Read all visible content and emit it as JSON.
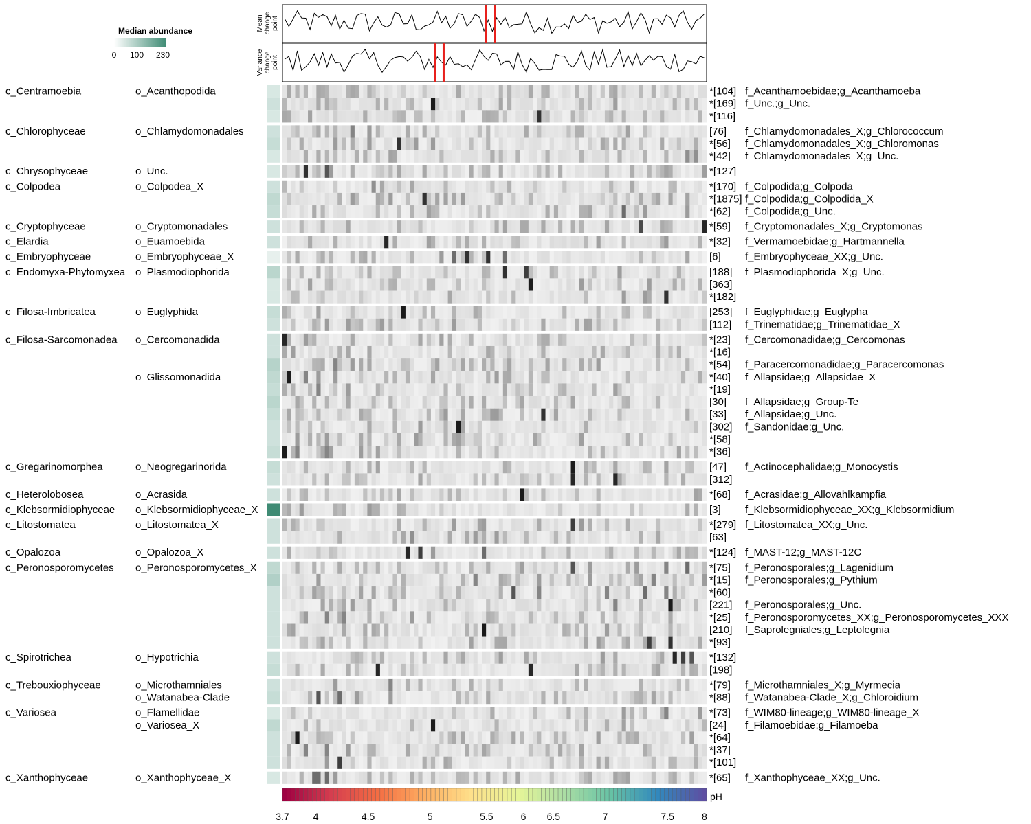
{
  "legend": {
    "title": "Median abundance",
    "ticks": [
      "0",
      "100",
      "230"
    ],
    "colors": {
      "low": "#ffffff",
      "high": "#3f8b74"
    }
  },
  "panels": {
    "mean_label": [
      "Mean",
      "change",
      "point"
    ],
    "variance_label": [
      "Variance",
      "change",
      "point"
    ]
  },
  "ph_bar": {
    "label": "pH",
    "tick_labels": [
      "3.7",
      "4",
      "4.5",
      "5",
      "5.5",
      "6",
      "6.5",
      "7",
      "7.5",
      "8"
    ],
    "tick_values": [
      3.7,
      4,
      4.5,
      5,
      5.5,
      6,
      6.5,
      7,
      7.5,
      8
    ],
    "palette": [
      "#9e0142",
      "#d53e4f",
      "#f46d43",
      "#fdae61",
      "#fee08b",
      "#e6f598",
      "#abdda4",
      "#66c2a5",
      "#3288bd",
      "#5e4fa2"
    ]
  },
  "chart_data": {
    "type": "heatmap",
    "n_samples": 100,
    "mean_change_points": [
      48,
      50
    ],
    "variance_change_points": [
      36,
      38
    ],
    "rows": [
      {
        "cls": "c_Centramoebia",
        "ord": "o_Acanthopodida",
        "otu": "*[104]",
        "fam": "f_Acanthamoebidae;g_Acanthamoeba",
        "grp": 0
      },
      {
        "cls": "",
        "ord": "",
        "otu": "*[169]",
        "fam": "f_Unc.;g_Unc.",
        "grp": 0
      },
      {
        "cls": "",
        "ord": "",
        "otu": "*[116]",
        "fam": "",
        "grp": 0
      },
      {
        "cls": "c_Chlorophyceae",
        "ord": "o_Chlamydomonadales",
        "otu": "[76]",
        "fam": "f_Chlamydomonadales_X;g_Chlorococcum",
        "grp": 1
      },
      {
        "cls": "",
        "ord": "",
        "otu": "*[56]",
        "fam": "f_Chlamydomonadales_X;g_Chloromonas",
        "grp": 1
      },
      {
        "cls": "",
        "ord": "",
        "otu": "*[42]",
        "fam": "f_Chlamydomonadales_X;g_Unc.",
        "grp": 1
      },
      {
        "cls": "c_Chrysophyceae",
        "ord": "o_Unc.",
        "otu": "*[127]",
        "fam": "",
        "grp": 2
      },
      {
        "cls": "c_Colpodea",
        "ord": "o_Colpodea_X",
        "otu": "*[170]",
        "fam": "f_Colpodida;g_Colpoda",
        "grp": 3
      },
      {
        "cls": "",
        "ord": "",
        "otu": "*[1875]",
        "fam": "f_Colpodida;g_Colpodida_X",
        "grp": 3
      },
      {
        "cls": "",
        "ord": "",
        "otu": "*[62]",
        "fam": "f_Colpodida;g_Unc.",
        "grp": 3
      },
      {
        "cls": "c_Cryptophyceae",
        "ord": "o_Cryptomonadales",
        "otu": "*[59]",
        "fam": "f_Cryptomonadales_X;g_Cryptomonas",
        "grp": 4
      },
      {
        "cls": "c_Elardia",
        "ord": "o_Euamoebida",
        "otu": "*[32]",
        "fam": "f_Vermamoebidae;g_Hartmannella",
        "grp": 5
      },
      {
        "cls": "c_Embryophyceae",
        "ord": "o_Embryophyceae_X",
        "otu": "[6]",
        "fam": "f_Embryophyceae_XX;g_Unc.",
        "grp": 6
      },
      {
        "cls": "c_Endomyxa-Phytomyxea",
        "ord": "o_Plasmodiophorida",
        "otu": "[188]",
        "fam": "f_Plasmodiophorida_X;g_Unc.",
        "grp": 7
      },
      {
        "cls": "",
        "ord": "",
        "otu": "[363]",
        "fam": "",
        "grp": 7
      },
      {
        "cls": "",
        "ord": "",
        "otu": "*[182]",
        "fam": "",
        "grp": 7
      },
      {
        "cls": "c_Filosa-Imbricatea",
        "ord": "o_Euglyphida",
        "otu": "[253]",
        "fam": "f_Euglyphidae;g_Euglypha",
        "grp": 8
      },
      {
        "cls": "",
        "ord": "",
        "otu": "[112]",
        "fam": "f_Trinematidae;g_Trinematidae_X",
        "grp": 8
      },
      {
        "cls": "c_Filosa-Sarcomonadea",
        "ord": "o_Cercomonadida",
        "otu": "*[23]",
        "fam": "f_Cercomonadidae;g_Cercomonas",
        "grp": 9
      },
      {
        "cls": "",
        "ord": "",
        "otu": "*[16]",
        "fam": "",
        "grp": 9
      },
      {
        "cls": "",
        "ord": "",
        "otu": "*[54]",
        "fam": "f_Paracercomonadidae;g_Paracercomonas",
        "grp": 9
      },
      {
        "cls": "",
        "ord": "o_Glissomonadida",
        "otu": "*[40]",
        "fam": "f_Allapsidae;g_Allapsidae_X",
        "grp": 9
      },
      {
        "cls": "",
        "ord": "",
        "otu": "*[19]",
        "fam": "",
        "grp": 9
      },
      {
        "cls": "",
        "ord": "",
        "otu": "[30]",
        "fam": "f_Allapsidae;g_Group-Te",
        "grp": 9
      },
      {
        "cls": "",
        "ord": "",
        "otu": "[33]",
        "fam": "f_Allapsidae;g_Unc.",
        "grp": 9
      },
      {
        "cls": "",
        "ord": "",
        "otu": "[302]",
        "fam": "f_Sandonidae;g_Unc.",
        "grp": 9
      },
      {
        "cls": "",
        "ord": "",
        "otu": "*[58]",
        "fam": "",
        "grp": 9
      },
      {
        "cls": "",
        "ord": "",
        "otu": "*[36]",
        "fam": "",
        "grp": 9
      },
      {
        "cls": "c_Gregarinomorphea",
        "ord": "o_Neogregarinorida",
        "otu": "[47]",
        "fam": "f_Actinocephalidae;g_Monocystis",
        "grp": 10
      },
      {
        "cls": "",
        "ord": "",
        "otu": "[312]",
        "fam": "",
        "grp": 10
      },
      {
        "cls": "c_Heterolobosea",
        "ord": "o_Acrasida",
        "otu": "*[68]",
        "fam": "f_Acrasidae;g_Allovahlkampfia",
        "grp": 11
      },
      {
        "cls": "c_Klebsormidiophyceae",
        "ord": "o_Klebsormidiophyceae_X",
        "otu": "[3]",
        "fam": "f_Klebsormidiophyceae_XX;g_Klebsormidium",
        "grp": 12
      },
      {
        "cls": "c_Litostomatea",
        "ord": "o_Litostomatea_X",
        "otu": "*[279]",
        "fam": "f_Litostomatea_XX;g_Unc.",
        "grp": 13
      },
      {
        "cls": "",
        "ord": "",
        "otu": "[63]",
        "fam": "",
        "grp": 13
      },
      {
        "cls": "c_Opalozoa",
        "ord": "o_Opalozoa_X",
        "otu": "*[124]",
        "fam": "f_MAST-12;g_MAST-12C",
        "grp": 14
      },
      {
        "cls": "c_Peronosporomycetes",
        "ord": "o_Peronosporomycetes_X",
        "otu": "*[75]",
        "fam": "f_Peronosporales;g_Lagenidium",
        "grp": 15
      },
      {
        "cls": "",
        "ord": "",
        "otu": "*[15]",
        "fam": "f_Peronosporales;g_Pythium",
        "grp": 15
      },
      {
        "cls": "",
        "ord": "",
        "otu": "*[60]",
        "fam": "",
        "grp": 15
      },
      {
        "cls": "",
        "ord": "",
        "otu": "[221]",
        "fam": "f_Peronosporales;g_Unc.",
        "grp": 15
      },
      {
        "cls": "",
        "ord": "",
        "otu": "*[25]",
        "fam": "f_Peronosporomycetes_XX;g_Peronosporomycetes_XXX",
        "grp": 15
      },
      {
        "cls": "",
        "ord": "",
        "otu": "[210]",
        "fam": "f_Saprolegniales;g_Leptolegnia",
        "grp": 15
      },
      {
        "cls": "",
        "ord": "",
        "otu": "*[93]",
        "fam": "",
        "grp": 15
      },
      {
        "cls": "c_Spirotrichea",
        "ord": "o_Hypotrichia",
        "otu": "*[132]",
        "fam": "",
        "grp": 16
      },
      {
        "cls": "",
        "ord": "",
        "otu": "[198]",
        "fam": "",
        "grp": 16
      },
      {
        "cls": "c_Trebouxiophyceae",
        "ord": "o_Microthamniales",
        "otu": "*[79]",
        "fam": "f_Microthamniales_X;g_Myrmecia",
        "grp": 17
      },
      {
        "cls": "",
        "ord": "o_Watanabea-Clade",
        "otu": "*[88]",
        "fam": "f_Watanabea-Clade_X;g_Chloroidium",
        "grp": 17
      },
      {
        "cls": "c_Variosea",
        "ord": "o_Flamellidae",
        "otu": "*[73]",
        "fam": "f_WIM80-lineage;g_WIM80-lineage_X",
        "grp": 18
      },
      {
        "cls": "",
        "ord": "o_Variosea_X",
        "otu": "[24]",
        "fam": "f_Filamoebidae;g_Filamoeba",
        "grp": 18
      },
      {
        "cls": "",
        "ord": "",
        "otu": "*[64]",
        "fam": "",
        "grp": 18
      },
      {
        "cls": "",
        "ord": "",
        "otu": "*[37]",
        "fam": "",
        "grp": 18
      },
      {
        "cls": "",
        "ord": "",
        "otu": "*[101]",
        "fam": "",
        "grp": 18
      },
      {
        "cls": "c_Xanthophyceae",
        "ord": "o_Xanthophyceae_X",
        "otu": "*[65]",
        "fam": "f_Xanthophyceae_XX;g_Unc.",
        "grp": 19
      }
    ],
    "median_abundance": [
      2,
      3,
      2,
      3,
      4,
      2,
      2,
      3,
      5,
      4,
      3,
      3,
      1,
      6,
      2,
      2,
      4,
      3,
      3,
      3,
      7,
      5,
      4,
      6,
      4,
      3,
      3,
      4,
      4,
      3,
      3,
      230,
      3,
      3,
      3,
      5,
      8,
      3,
      3,
      3,
      3,
      3,
      3,
      4,
      3,
      4,
      2,
      5,
      3,
      3,
      3,
      2
    ],
    "peaks": [
      [
        [
          1,
          0.35
        ],
        [
          3,
          0.3
        ],
        [
          5,
          0.3
        ],
        [
          8,
          0.35
        ],
        [
          10,
          0.3
        ],
        [
          15,
          0.3
        ],
        [
          20,
          0.3
        ]
      ],
      [
        [
          35,
          0.95
        ],
        [
          24,
          0.3
        ],
        [
          30,
          0.3
        ]
      ],
      [
        [
          60,
          0.85
        ],
        [
          68,
          0.3
        ],
        [
          80,
          0.3
        ],
        [
          85,
          0.3
        ]
      ],
      [
        [
          12,
          0.3
        ],
        [
          16,
          0.5
        ],
        [
          20,
          0.4
        ],
        [
          22,
          0.3
        ],
        [
          60,
          0.25
        ]
      ],
      [
        [
          12,
          0.4
        ],
        [
          20,
          0.4
        ],
        [
          27,
          0.85
        ],
        [
          31,
          0.4
        ],
        [
          35,
          0.4
        ]
      ],
      [
        [
          26,
          0.35
        ],
        [
          55,
          0.3
        ],
        [
          70,
          0.3
        ],
        [
          85,
          0.3
        ],
        [
          95,
          0.45
        ],
        [
          97,
          0.45
        ]
      ],
      [
        [
          5,
          0.85
        ],
        [
          10,
          0.7
        ],
        [
          3,
          0.3
        ],
        [
          11,
          0.4
        ]
      ],
      [
        [
          23,
          0.35
        ],
        [
          30,
          0.35
        ],
        [
          21,
          0.45
        ],
        [
          12,
          0.2
        ]
      ],
      [
        [
          16,
          0.4
        ],
        [
          22,
          0.35
        ],
        [
          25,
          0.4
        ],
        [
          40,
          0.35
        ],
        [
          42,
          0.4
        ],
        [
          33,
          0.85
        ]
      ],
      [
        [
          22,
          0.3
        ],
        [
          30,
          0.3
        ],
        [
          80,
          0.6
        ],
        [
          85,
          0.4
        ],
        [
          95,
          0.4
        ]
      ],
      [
        [
          84,
          0.75
        ],
        [
          99,
          0.9
        ],
        [
          70,
          0.3
        ],
        [
          90,
          0.3
        ]
      ],
      [
        [
          24,
          0.9
        ],
        [
          80,
          0.3
        ],
        [
          90,
          0.4
        ]
      ],
      [
        [
          30,
          0.3
        ],
        [
          37,
          0.4
        ],
        [
          40,
          0.6
        ],
        [
          43,
          0.85
        ],
        [
          48,
          0.85
        ],
        [
          52,
          0.6
        ]
      ],
      [
        [
          52,
          0.85
        ],
        [
          57,
          0.8
        ],
        [
          63,
          0.3
        ],
        [
          79,
          0.4
        ]
      ],
      [
        [
          58,
          0.95
        ]
      ],
      [
        [
          80,
          0.4
        ],
        [
          85,
          0.4
        ],
        [
          90,
          0.85
        ]
      ],
      [
        [
          28,
          0.95
        ],
        [
          35,
          0.3
        ],
        [
          40,
          0.3
        ]
      ],
      [
        [
          10,
          0.4
        ],
        [
          15,
          0.4
        ],
        [
          18,
          0.3
        ],
        [
          23,
          0.4
        ],
        [
          40,
          0.4
        ]
      ],
      [
        [
          0,
          0.9
        ],
        [
          5,
          0.4
        ],
        [
          7,
          0.3
        ]
      ],
      [
        [
          15,
          0.35
        ],
        [
          20,
          0.35
        ],
        [
          48,
          0.35
        ],
        [
          75,
          0.35
        ]
      ],
      [
        [
          8,
          0.3
        ],
        [
          12,
          0.5
        ],
        [
          16,
          0.4
        ],
        [
          20,
          0.35
        ]
      ],
      [
        [
          1,
          0.95
        ],
        [
          5,
          0.5
        ],
        [
          8,
          0.4
        ],
        [
          12,
          0.4
        ]
      ],
      [
        [
          2,
          0.3
        ],
        [
          8,
          0.5
        ],
        [
          15,
          0.4
        ]
      ],
      [
        [
          3,
          0.35
        ],
        [
          10,
          0.3
        ],
        [
          15,
          0.35
        ],
        [
          25,
          0.3
        ]
      ],
      [
        [
          38,
          0.4
        ],
        [
          42,
          0.35
        ],
        [
          50,
          0.4
        ],
        [
          61,
          0.85
        ]
      ],
      [
        [
          41,
          0.95
        ],
        [
          32,
          0.4
        ],
        [
          38,
          0.3
        ]
      ],
      [
        [
          3,
          0.4
        ],
        [
          10,
          0.4
        ],
        [
          20,
          0.3
        ],
        [
          31,
          0.4
        ]
      ],
      [
        [
          0,
          0.95
        ],
        [
          3,
          0.5
        ],
        [
          10,
          0.5
        ],
        [
          18,
          0.4
        ]
      ],
      [
        [
          68,
          0.95
        ],
        [
          5,
          0.3
        ],
        [
          15,
          0.3
        ],
        [
          30,
          0.3
        ]
      ],
      [
        [
          68,
          0.9
        ],
        [
          78,
          0.9
        ]
      ],
      [
        [
          56,
          0.95
        ],
        [
          5,
          0.3
        ]
      ],
      [
        [
          4,
          0.4
        ],
        [
          12,
          0.3
        ],
        [
          20,
          0.4
        ],
        [
          28,
          0.3
        ]
      ],
      [
        [
          33,
          0.3
        ],
        [
          40,
          0.4
        ],
        [
          47,
          0.4
        ],
        [
          68,
          0.8
        ],
        [
          70,
          0.4
        ]
      ],
      [
        [
          30,
          0.45
        ],
        [
          45,
          0.4
        ],
        [
          50,
          0.4
        ]
      ],
      [
        [
          29,
          0.9
        ],
        [
          32,
          0.8
        ],
        [
          47,
          0.6
        ],
        [
          35,
          0.4
        ]
      ],
      [
        [
          68,
          0.7
        ],
        [
          72,
          0.4
        ],
        [
          83,
          0.4
        ],
        [
          90,
          0.5
        ],
        [
          95,
          0.6
        ]
      ],
      [
        [
          45,
          0.5
        ],
        [
          52,
          0.3
        ],
        [
          60,
          0.4
        ],
        [
          72,
          0.4
        ],
        [
          87,
          0.5
        ]
      ],
      [
        [
          54,
          0.7
        ],
        [
          60,
          0.5
        ],
        [
          76,
          0.5
        ],
        [
          85,
          0.6
        ],
        [
          90,
          0.5
        ]
      ],
      [
        [
          78,
          0.5
        ],
        [
          91,
          0.95
        ]
      ],
      [
        [
          5,
          0.4
        ],
        [
          10,
          0.5
        ],
        [
          14,
          0.5
        ],
        [
          20,
          0.3
        ],
        [
          30,
          0.4
        ]
      ],
      [
        [
          47,
          0.95
        ],
        [
          76,
          0.4
        ]
      ],
      [
        [
          86,
          0.8
        ],
        [
          91,
          0.85
        ],
        [
          74,
          0.4
        ]
      ],
      [
        [
          92,
          0.9
        ],
        [
          94,
          0.8
        ],
        [
          96,
          0.7
        ],
        [
          75,
          0.4
        ]
      ],
      [
        [
          22,
          0.9
        ],
        [
          58,
          0.9
        ],
        [
          80,
          0.3
        ]
      ],
      [
        [
          12,
          0.4
        ],
        [
          25,
          0.5
        ],
        [
          32,
          0.3
        ]
      ],
      [
        [
          8,
          0.7
        ],
        [
          13,
          0.6
        ],
        [
          17,
          0.4
        ],
        [
          25,
          0.4
        ]
      ],
      [
        [
          80,
          0.4
        ],
        [
          90,
          0.5
        ],
        [
          98,
          0.4
        ]
      ],
      [
        [
          35,
          0.95
        ],
        [
          50,
          0.3
        ]
      ],
      [
        [
          3,
          0.95
        ],
        [
          8,
          0.3
        ]
      ],
      [
        [
          5,
          0.5
        ],
        [
          10,
          0.5
        ],
        [
          15,
          0.4
        ],
        [
          20,
          0.3
        ]
      ],
      [
        [
          13,
          0.8
        ],
        [
          10,
          0.4
        ],
        [
          20,
          0.3
        ]
      ],
      [
        [
          7,
          0.6
        ],
        [
          8,
          0.6
        ],
        [
          10,
          0.6
        ],
        [
          12,
          0.4
        ]
      ]
    ]
  }
}
